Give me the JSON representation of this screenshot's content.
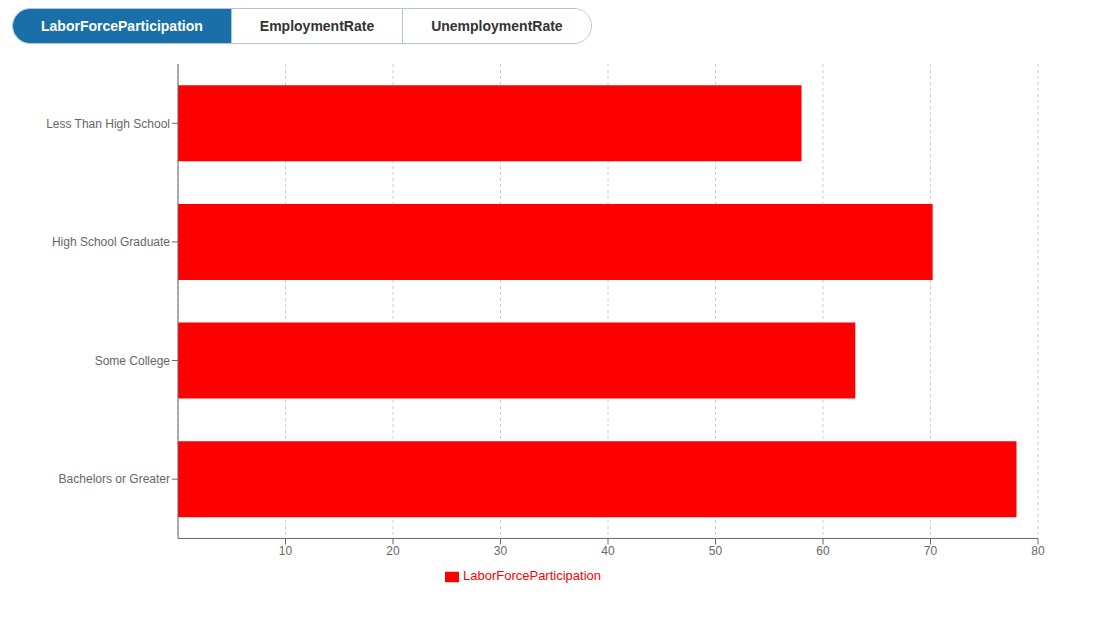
{
  "chart_data": {
    "type": "bar",
    "orientation": "horizontal",
    "annotations": [
      "LaborForceParticipation",
      "EmploymentRate",
      "UnemploymentRate"
    ],
    "categories": [
      "Less Than High School",
      "High School Graduate",
      "Some College",
      "Bachelors or Greater"
    ],
    "series": [
      {
        "name": "LaborForceParticipation",
        "color": "#ff0000",
        "values": [
          58.0,
          70.2,
          63.0,
          78.0
        ]
      }
    ],
    "xlim": [
      0,
      80
    ],
    "xticks": [
      10,
      20,
      30,
      40,
      50,
      60,
      70,
      80
    ],
    "grid": true,
    "legend": "bottom"
  }
}
